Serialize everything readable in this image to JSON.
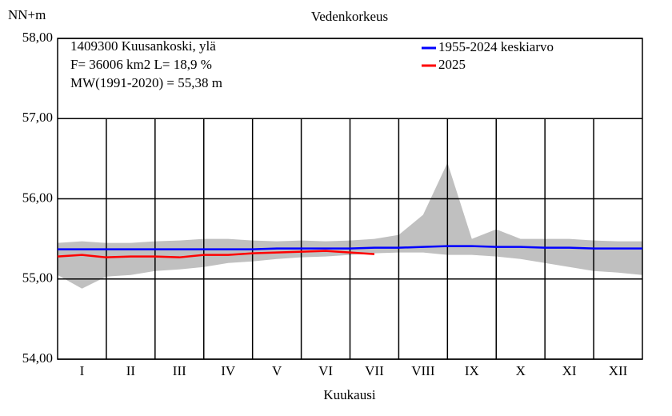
{
  "chart_data": {
    "type": "line",
    "title": "Vedenkorkeus",
    "y_label": "NN+m",
    "x_label": "Kuukausi",
    "annotations": [
      "1409300 Kuusankoski, ylä",
      "F=  36006 km2 L=  18,9 %",
      "MW(1991-2020) = 55,38 m"
    ],
    "categories": [
      "I",
      "II",
      "III",
      "IV",
      "V",
      "VI",
      "VII",
      "VIII",
      "IX",
      "X",
      "XI",
      "XII"
    ],
    "xlim": [
      0,
      12
    ],
    "x": [
      0,
      0.5,
      1,
      1.5,
      2,
      2.5,
      3,
      3.5,
      4,
      4.5,
      5,
      5.5,
      6,
      6.5,
      7,
      7.5,
      8,
      8.5,
      9,
      9.5,
      10,
      10.5,
      11,
      11.5,
      12
    ],
    "band": {
      "color": "#c0c0c0",
      "high": [
        55.45,
        55.47,
        55.45,
        55.45,
        55.47,
        55.48,
        55.5,
        55.5,
        55.48,
        55.47,
        55.48,
        55.47,
        55.48,
        55.5,
        55.55,
        55.8,
        56.45,
        55.5,
        55.62,
        55.5,
        55.5,
        55.5,
        55.48,
        55.47,
        55.47
      ],
      "low": [
        55.05,
        54.88,
        55.03,
        55.05,
        55.1,
        55.12,
        55.15,
        55.2,
        55.22,
        55.25,
        55.27,
        55.28,
        55.3,
        55.32,
        55.33,
        55.33,
        55.3,
        55.3,
        55.28,
        55.25,
        55.2,
        55.15,
        55.1,
        55.08,
        55.05
      ]
    },
    "series": [
      {
        "name": "1955-2024 keskiarvo",
        "color": "#0000ff",
        "values": [
          55.37,
          55.37,
          55.37,
          55.37,
          55.37,
          55.37,
          55.37,
          55.37,
          55.37,
          55.38,
          55.38,
          55.38,
          55.38,
          55.39,
          55.39,
          55.4,
          55.41,
          55.41,
          55.4,
          55.4,
          55.39,
          55.39,
          55.38,
          55.38,
          55.38
        ]
      },
      {
        "name": "2025",
        "color": "#ff0000",
        "values": [
          55.28,
          55.3,
          55.27,
          55.28,
          55.28,
          55.27,
          55.3,
          55.3,
          55.32,
          55.33,
          55.34,
          55.35,
          55.33,
          55.31,
          null,
          null,
          null,
          null,
          null,
          null,
          null,
          null,
          null,
          null,
          null
        ]
      }
    ],
    "ylim": [
      54,
      58
    ],
    "yticks": [
      {
        "value": 54,
        "label": "54,00"
      },
      {
        "value": 55,
        "label": "55,00"
      },
      {
        "value": 56,
        "label": "56,00"
      },
      {
        "value": 57,
        "label": "57,00"
      },
      {
        "value": 58,
        "label": "58,00"
      }
    ],
    "grid": true
  }
}
